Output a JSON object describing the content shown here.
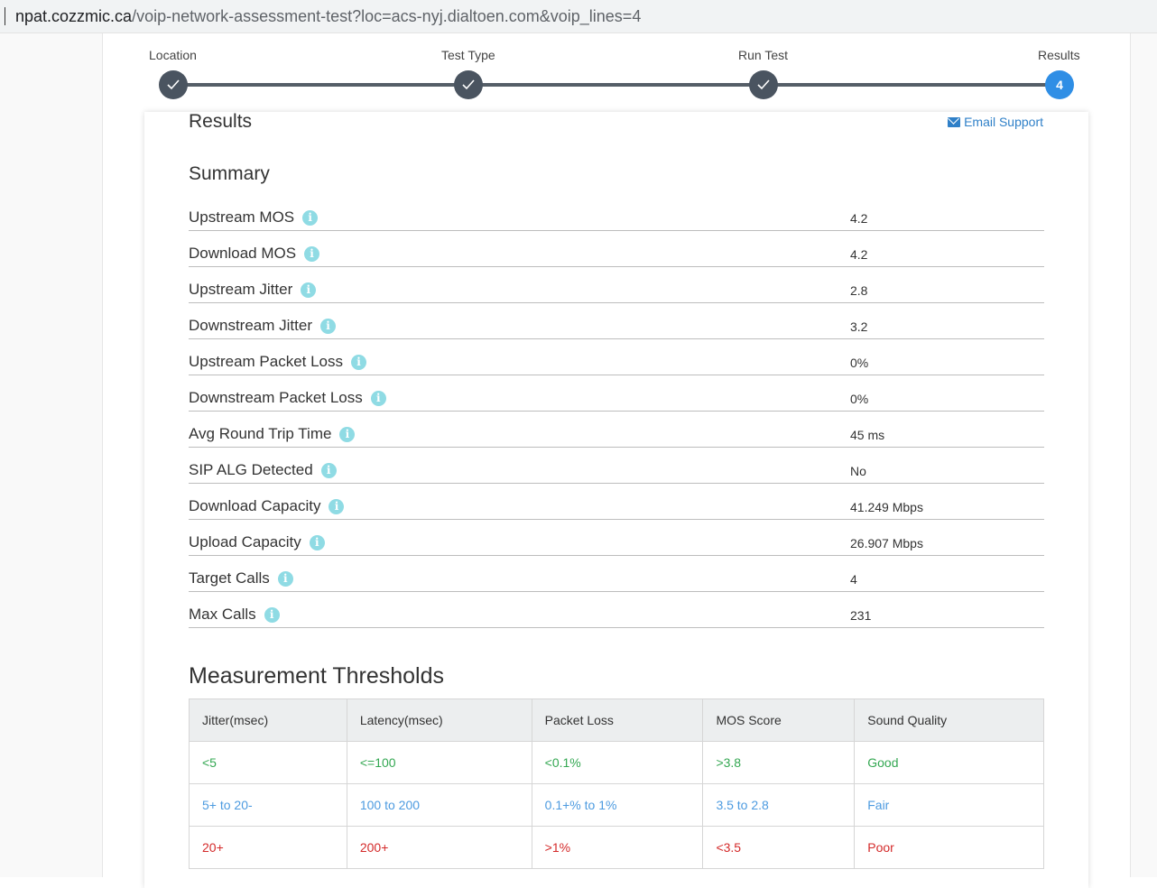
{
  "browser": {
    "url_host": "npat.cozzmic.ca",
    "url_path": "/voip-network-assessment-test?loc=acs-nyj.dialtoen.com&voip_lines=4"
  },
  "stepper": {
    "steps": [
      {
        "label": "Location",
        "state": "done",
        "icon": "check-icon"
      },
      {
        "label": "Test Type",
        "state": "done",
        "icon": "check-icon"
      },
      {
        "label": "Run Test",
        "state": "done",
        "icon": "check-icon"
      },
      {
        "label": "Results",
        "state": "active",
        "number": "4"
      }
    ]
  },
  "results": {
    "title": "Results",
    "email_support": "Email Support",
    "summary_title": "Summary",
    "info_glyph": "i",
    "metrics": [
      {
        "label": "Upstream MOS",
        "value": "4.2"
      },
      {
        "label": "Download MOS",
        "value": "4.2"
      },
      {
        "label": "Upstream Jitter",
        "value": "2.8"
      },
      {
        "label": "Downstream Jitter",
        "value": "3.2"
      },
      {
        "label": "Upstream Packet Loss",
        "value": "0%"
      },
      {
        "label": "Downstream Packet Loss",
        "value": "0%"
      },
      {
        "label": "Avg Round Trip Time",
        "value": "45 ms"
      },
      {
        "label": "SIP ALG Detected",
        "value": "No"
      },
      {
        "label": "Download Capacity",
        "value": "41.249 Mbps"
      },
      {
        "label": "Upload Capacity",
        "value": "26.907 Mbps"
      },
      {
        "label": "Target Calls",
        "value": "4"
      },
      {
        "label": "Max Calls",
        "value": "231"
      }
    ]
  },
  "thresholds": {
    "title": "Measurement Thresholds",
    "headers": [
      "Jitter(msec)",
      "Latency(msec)",
      "Packet Loss",
      "MOS Score",
      "Sound Quality"
    ],
    "rows": [
      {
        "level": "good",
        "cells": [
          "<5",
          "<=100",
          "<0.1%",
          ">3.8",
          "Good"
        ]
      },
      {
        "level": "fair",
        "cells": [
          "5+ to 20-",
          "100 to 200",
          "0.1+% to 1%",
          "3.5 to 2.8",
          "Fair"
        ]
      },
      {
        "level": "poor",
        "cells": [
          "20+",
          "200+",
          ">1%",
          "<3.5",
          "Poor"
        ]
      }
    ]
  },
  "colors": {
    "accent": "#2f8ee5",
    "step_done": "#4a5460",
    "good": "#35a853",
    "fair": "#4d9be0",
    "poor": "#d42a2a",
    "info_icon": "#8fdbe4"
  }
}
